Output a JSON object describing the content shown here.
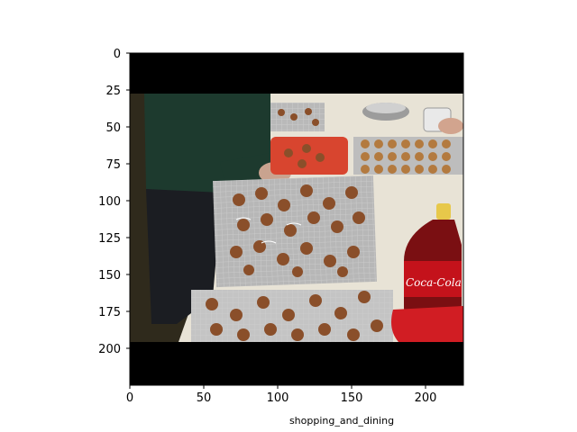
{
  "figure": {
    "caption": "shopping_and_dining"
  },
  "axes": {
    "y_ticks": [
      "0",
      "25",
      "50",
      "75",
      "100",
      "125",
      "150",
      "175",
      "200"
    ],
    "x_ticks": [
      "0",
      "50",
      "100",
      "150",
      "200"
    ],
    "x_range": [
      0,
      225
    ],
    "y_range": [
      0,
      225
    ]
  },
  "photo": {
    "subject": "people decorating gingerbread cookies on baking trays",
    "bottle_label": "Coca-Cola"
  },
  "colors": {
    "letterbox": "#000000",
    "table": "#e8e3d6",
    "sweater": "#1d3a2e",
    "cookie": "#8a4f2a",
    "tray": "#b9b9b9",
    "red_tray": "#d8452f",
    "soda": "#b0121c"
  }
}
